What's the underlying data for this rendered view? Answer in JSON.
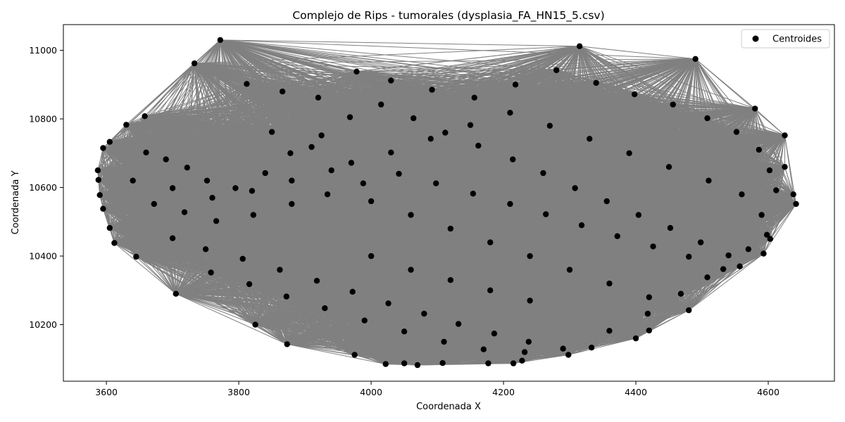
{
  "chart_data": {
    "type": "scatter",
    "title": "Complejo de Rips - tumorales (dysplasia_FA_HN15_5.csv)",
    "xlabel": "Coordenada X",
    "ylabel": "Coordenada Y",
    "xlim": [
      3535,
      4700
    ],
    "ylim": [
      10035,
      11075
    ],
    "xticks": [
      3600,
      3800,
      4000,
      4200,
      4400,
      4600
    ],
    "yticks": [
      10200,
      10400,
      10600,
      10800,
      11000
    ],
    "grid": false,
    "legend": {
      "position": "top-right",
      "entries": [
        "Centroides"
      ]
    },
    "point_color": "#000000",
    "edge_color": "#808080",
    "series": [
      {
        "name": "Centroides",
        "points": [
          [
            3772,
            11030
          ],
          [
            3733,
            10962
          ],
          [
            3630,
            10783
          ],
          [
            3605,
            10733
          ],
          [
            3595,
            10715
          ],
          [
            3587,
            10650
          ],
          [
            3588,
            10622
          ],
          [
            3590,
            10578
          ],
          [
            3595,
            10538
          ],
          [
            3605,
            10482
          ],
          [
            3612,
            10438
          ],
          [
            3645,
            10398
          ],
          [
            3705,
            10290
          ],
          [
            3825,
            10200
          ],
          [
            3873,
            10143
          ],
          [
            3975,
            10112
          ],
          [
            4022,
            10085
          ],
          [
            4050,
            10087
          ],
          [
            4070,
            10082
          ],
          [
            4108,
            10088
          ],
          [
            4177,
            10087
          ],
          [
            4215,
            10087
          ],
          [
            4228,
            10095
          ],
          [
            4333,
            10133
          ],
          [
            4400,
            10160
          ],
          [
            4420,
            10183
          ],
          [
            4557,
            10370
          ],
          [
            4593,
            10407
          ],
          [
            4603,
            10450
          ],
          [
            4625,
            10660
          ],
          [
            4638,
            10580
          ],
          [
            4642,
            10552
          ],
          [
            4625,
            10752
          ],
          [
            4580,
            10830
          ],
          [
            4490,
            10975
          ],
          [
            4315,
            11012
          ],
          [
            3658,
            10808
          ],
          [
            3660,
            10702
          ],
          [
            3690,
            10682
          ],
          [
            3722,
            10658
          ],
          [
            3752,
            10620
          ],
          [
            3795,
            10598
          ],
          [
            3840,
            10642
          ],
          [
            3878,
            10700
          ],
          [
            3925,
            10752
          ],
          [
            3968,
            10805
          ],
          [
            4015,
            10842
          ],
          [
            4064,
            10802
          ],
          [
            4112,
            10760
          ],
          [
            4162,
            10722
          ],
          [
            4214,
            10682
          ],
          [
            4260,
            10642
          ],
          [
            4308,
            10598
          ],
          [
            4356,
            10560
          ],
          [
            4404,
            10520
          ],
          [
            4452,
            10482
          ],
          [
            4498,
            10440
          ],
          [
            4540,
            10402
          ],
          [
            3700,
            10452
          ],
          [
            3750,
            10420
          ],
          [
            3806,
            10392
          ],
          [
            3862,
            10360
          ],
          [
            3918,
            10328
          ],
          [
            3972,
            10296
          ],
          [
            4026,
            10262
          ],
          [
            4080,
            10232
          ],
          [
            4132,
            10202
          ],
          [
            4186,
            10174
          ],
          [
            4238,
            10150
          ],
          [
            4290,
            10130
          ],
          [
            3812,
            10902
          ],
          [
            3866,
            10880
          ],
          [
            3920,
            10862
          ],
          [
            3978,
            10938
          ],
          [
            4030,
            10912
          ],
          [
            4092,
            10885
          ],
          [
            4156,
            10862
          ],
          [
            4218,
            10900
          ],
          [
            4280,
            10942
          ],
          [
            4340,
            10905
          ],
          [
            4398,
            10872
          ],
          [
            4456,
            10842
          ],
          [
            4508,
            10802
          ],
          [
            4552,
            10762
          ],
          [
            4586,
            10710
          ],
          [
            4602,
            10650
          ],
          [
            4612,
            10592
          ],
          [
            3672,
            10552
          ],
          [
            3718,
            10528
          ],
          [
            3766,
            10502
          ],
          [
            3822,
            10520
          ],
          [
            3880,
            10552
          ],
          [
            3934,
            10580
          ],
          [
            3988,
            10612
          ],
          [
            4042,
            10640
          ],
          [
            4098,
            10612
          ],
          [
            4154,
            10582
          ],
          [
            4210,
            10552
          ],
          [
            4264,
            10522
          ],
          [
            4318,
            10490
          ],
          [
            4372,
            10458
          ],
          [
            4426,
            10428
          ],
          [
            4480,
            10398
          ],
          [
            4532,
            10362
          ],
          [
            3758,
            10352
          ],
          [
            3816,
            10318
          ],
          [
            3872,
            10282
          ],
          [
            3930,
            10248
          ],
          [
            3990,
            10212
          ],
          [
            4050,
            10180
          ],
          [
            4110,
            10150
          ],
          [
            4170,
            10128
          ],
          [
            4232,
            10120
          ],
          [
            4298,
            10112
          ],
          [
            4360,
            10182
          ],
          [
            4418,
            10232
          ],
          [
            4468,
            10290
          ],
          [
            4508,
            10338
          ],
          [
            3850,
            10762
          ],
          [
            3910,
            10718
          ],
          [
            3970,
            10672
          ],
          [
            4030,
            10702
          ],
          [
            4090,
            10742
          ],
          [
            4150,
            10782
          ],
          [
            4210,
            10818
          ],
          [
            4270,
            10780
          ],
          [
            4330,
            10742
          ],
          [
            4390,
            10700
          ],
          [
            4450,
            10660
          ],
          [
            4510,
            10620
          ],
          [
            4560,
            10580
          ],
          [
            4590,
            10520
          ],
          [
            4598,
            10462
          ],
          [
            4570,
            10420
          ],
          [
            3640,
            10620
          ],
          [
            3700,
            10598
          ],
          [
            3760,
            10570
          ],
          [
            3820,
            10590
          ],
          [
            3880,
            10620
          ],
          [
            3940,
            10650
          ],
          [
            4000,
            10560
          ],
          [
            4060,
            10520
          ],
          [
            4120,
            10480
          ],
          [
            4180,
            10440
          ],
          [
            4240,
            10400
          ],
          [
            4300,
            10360
          ],
          [
            4360,
            10320
          ],
          [
            4420,
            10280
          ],
          [
            4480,
            10242
          ],
          [
            4000,
            10400
          ],
          [
            4060,
            10360
          ],
          [
            4120,
            10330
          ],
          [
            4180,
            10300
          ],
          [
            4240,
            10270
          ]
        ]
      }
    ]
  }
}
